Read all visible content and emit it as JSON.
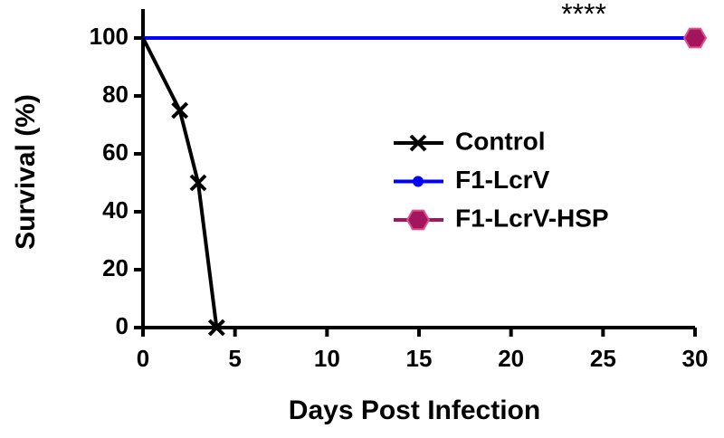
{
  "chart_data": {
    "type": "line",
    "xlabel": "Days Post Infection",
    "ylabel": "Survival (%)",
    "annotation": "****",
    "xlim": [
      0,
      30
    ],
    "xticks": [
      0,
      5,
      10,
      15,
      20,
      25,
      30
    ],
    "ylim": [
      0,
      110
    ],
    "yticks": [
      0,
      20,
      40,
      60,
      80,
      100
    ],
    "series": [
      {
        "name": "Control",
        "color": "#000000",
        "marker": "x",
        "x": [
          0,
          2,
          3,
          4
        ],
        "values": [
          100,
          75,
          50,
          0
        ]
      },
      {
        "name": "F1-LcrV",
        "color": "#0000ff",
        "marker": "circle",
        "x": [
          0,
          30
        ],
        "values": [
          100,
          100
        ]
      },
      {
        "name": "F1-LcrV-HSP",
        "color": "#a3155c",
        "marker": "hexagon",
        "x": [
          0,
          30
        ],
        "values": [
          100,
          100
        ]
      }
    ]
  }
}
